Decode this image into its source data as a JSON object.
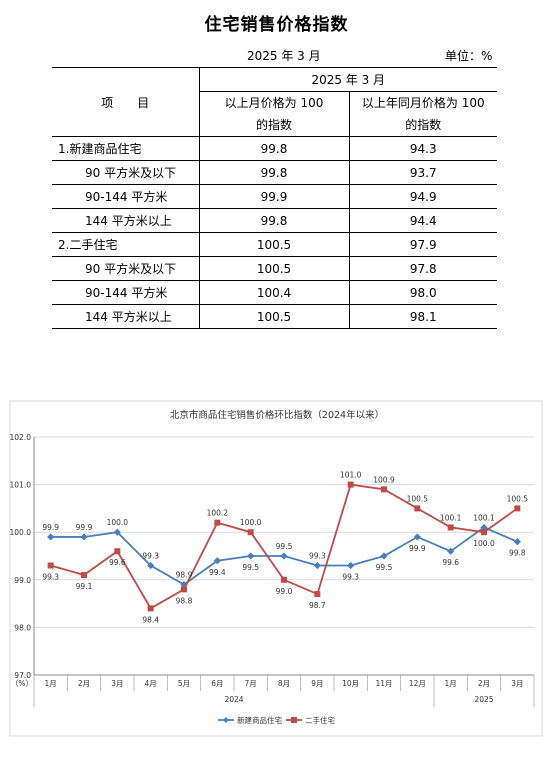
{
  "page_title": "住宅销售价格指数",
  "period": "2025 年 3 月",
  "unit": "单位：%",
  "table": {
    "col_header_item": "项　　目",
    "col_header_period": "2025 年 3 月",
    "col_mom_line1": "以上月价格为 100",
    "col_mom_line2": "的指数",
    "col_yoy_line1": "以上年同月价格为 100",
    "col_yoy_line2": "的指数",
    "rows": [
      {
        "label": "1.新建商品住宅",
        "mom": "99.8",
        "yoy": "94.3",
        "level": 1
      },
      {
        "label": "90 平方米及以下",
        "mom": "99.8",
        "yoy": "93.7",
        "level": 2
      },
      {
        "label": "90-144 平方米",
        "mom": "99.9",
        "yoy": "94.9",
        "level": 2
      },
      {
        "label": "144 平方米以上",
        "mom": "99.8",
        "yoy": "94.4",
        "level": 2
      },
      {
        "label": "2.二手住宅",
        "mom": "100.5",
        "yoy": "97.9",
        "level": 1
      },
      {
        "label": "90 平方米及以下",
        "mom": "100.5",
        "yoy": "97.8",
        "level": 2
      },
      {
        "label": "90-144 平方米",
        "mom": "100.4",
        "yoy": "98.0",
        "level": 2
      },
      {
        "label": "144 平方米以上",
        "mom": "100.5",
        "yoy": "98.1",
        "level": 2
      }
    ]
  },
  "chart_data": {
    "type": "line",
    "title": "北京市商品住宅销售价格环比指数（2024年以来）",
    "ylabel": "（%）",
    "ylim": [
      97.0,
      102.0
    ],
    "yticks": [
      "97.0",
      "98.0",
      "99.0",
      "100.0",
      "101.0",
      "102.0"
    ],
    "categories": [
      "1月",
      "2月",
      "3月",
      "4月",
      "5月",
      "6月",
      "7月",
      "8月",
      "9月",
      "10月",
      "11月",
      "12月",
      "1月",
      "2月",
      "3月"
    ],
    "year_groups": [
      {
        "label": "2024",
        "count": 12
      },
      {
        "label": "2025",
        "count": 3
      }
    ],
    "grid": true,
    "legend_position": "bottom",
    "series": [
      {
        "name": "新建商品住宅",
        "color": "#4a7ebb",
        "marker": "diamond",
        "values": [
          99.9,
          99.9,
          100.0,
          99.3,
          98.9,
          99.4,
          99.5,
          99.5,
          99.3,
          99.3,
          99.5,
          99.9,
          99.6,
          100.1,
          99.8
        ],
        "labels": [
          "99.9",
          "99.9",
          "100.0",
          "99.3",
          "98.9",
          "99.4",
          "99.5",
          "99.5",
          "99.3",
          "99.3",
          "99.5",
          "99.9",
          "99.6",
          "100.1",
          "99.8"
        ]
      },
      {
        "name": "二手住宅",
        "color": "#be4b48",
        "marker": "square",
        "values": [
          99.3,
          99.1,
          99.6,
          98.4,
          98.8,
          100.2,
          100.0,
          99.0,
          98.7,
          101.0,
          100.9,
          100.5,
          100.1,
          100.0,
          100.5
        ],
        "labels": [
          "99.3",
          "99.1",
          "99.6",
          "98.4",
          "98.8",
          "100.2",
          "100.0",
          "99.0",
          "98.7",
          "101.0",
          "100.9",
          "100.5",
          "100.1",
          "100.0",
          "100.5"
        ]
      }
    ]
  }
}
